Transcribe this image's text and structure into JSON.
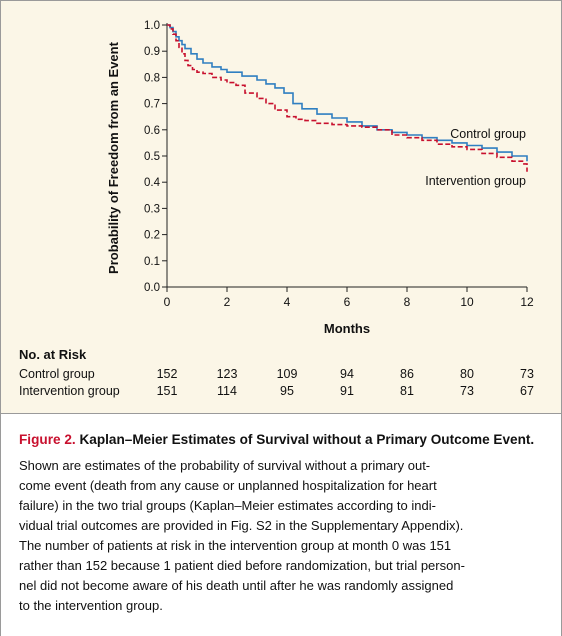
{
  "chart_data": {
    "type": "line",
    "xlabel": "Months",
    "ylabel": "Probability of Freedom from an Event",
    "xlim": [
      0,
      12
    ],
    "ylim": [
      0,
      1.0
    ],
    "x_ticks": [
      "0",
      "2",
      "4",
      "6",
      "8",
      "10",
      "12"
    ],
    "y_ticks": [
      "0.0",
      "0.1",
      "0.2",
      "0.3",
      "0.4",
      "0.5",
      "0.6",
      "0.7",
      "0.8",
      "0.9",
      "1.0"
    ],
    "series": [
      {
        "name": "Control group",
        "color": "#2f7fc1",
        "style": "solid",
        "points": [
          [
            0,
            1.0
          ],
          [
            0.1,
            0.99
          ],
          [
            0.2,
            0.975
          ],
          [
            0.3,
            0.955
          ],
          [
            0.4,
            0.94
          ],
          [
            0.5,
            0.925
          ],
          [
            0.6,
            0.91
          ],
          [
            0.8,
            0.89
          ],
          [
            1.0,
            0.87
          ],
          [
            1.2,
            0.855
          ],
          [
            1.5,
            0.84
          ],
          [
            1.8,
            0.83
          ],
          [
            2.0,
            0.82
          ],
          [
            2.5,
            0.805
          ],
          [
            3.0,
            0.79
          ],
          [
            3.3,
            0.775
          ],
          [
            3.6,
            0.76
          ],
          [
            3.9,
            0.74
          ],
          [
            4.2,
            0.7
          ],
          [
            4.5,
            0.68
          ],
          [
            5.0,
            0.66
          ],
          [
            5.5,
            0.645
          ],
          [
            6.0,
            0.63
          ],
          [
            6.5,
            0.615
          ],
          [
            7.0,
            0.6
          ],
          [
            7.5,
            0.59
          ],
          [
            8.0,
            0.58
          ],
          [
            8.5,
            0.57
          ],
          [
            9.0,
            0.56
          ],
          [
            9.5,
            0.55
          ],
          [
            10.0,
            0.54
          ],
          [
            10.5,
            0.53
          ],
          [
            11.0,
            0.515
          ],
          [
            11.5,
            0.5
          ],
          [
            12.0,
            0.48
          ]
        ]
      },
      {
        "name": "Intervention group",
        "color": "#c8102e",
        "style": "dashed",
        "points": [
          [
            0,
            1.0
          ],
          [
            0.1,
            0.985
          ],
          [
            0.2,
            0.965
          ],
          [
            0.3,
            0.94
          ],
          [
            0.4,
            0.915
          ],
          [
            0.5,
            0.89
          ],
          [
            0.6,
            0.865
          ],
          [
            0.7,
            0.845
          ],
          [
            0.85,
            0.83
          ],
          [
            1.0,
            0.82
          ],
          [
            1.2,
            0.815
          ],
          [
            1.5,
            0.8
          ],
          [
            1.8,
            0.79
          ],
          [
            2.0,
            0.78
          ],
          [
            2.3,
            0.77
          ],
          [
            2.6,
            0.74
          ],
          [
            3.0,
            0.72
          ],
          [
            3.3,
            0.7
          ],
          [
            3.6,
            0.675
          ],
          [
            4.0,
            0.65
          ],
          [
            4.3,
            0.64
          ],
          [
            4.6,
            0.635
          ],
          [
            5.0,
            0.625
          ],
          [
            5.5,
            0.62
          ],
          [
            6.0,
            0.615
          ],
          [
            6.5,
            0.61
          ],
          [
            7.0,
            0.6
          ],
          [
            7.5,
            0.58
          ],
          [
            8.0,
            0.57
          ],
          [
            8.5,
            0.56
          ],
          [
            9.0,
            0.545
          ],
          [
            9.5,
            0.535
          ],
          [
            10.0,
            0.525
          ],
          [
            10.5,
            0.51
          ],
          [
            11.0,
            0.495
          ],
          [
            11.5,
            0.48
          ],
          [
            11.85,
            0.47
          ],
          [
            12.0,
            0.44
          ]
        ]
      }
    ]
  },
  "risk_table": {
    "title": "No. at Risk",
    "rows": [
      {
        "label": "Control group",
        "values": [
          "152",
          "123",
          "109",
          "94",
          "86",
          "80",
          "73"
        ]
      },
      {
        "label": "Intervention group",
        "values": [
          "151",
          "114",
          "95",
          "91",
          "81",
          "73",
          "67"
        ]
      }
    ]
  },
  "caption": {
    "figure_number": "Figure 2.",
    "title": "Kaplan–Meier Estimates of Survival without a Primary Outcome Event.",
    "body_lines": [
      "Shown are estimates of the probability of survival without a primary out-",
      "come event (death from any cause or unplanned hospitalization for heart",
      "failure) in the two trial groups (Kaplan–Meier estimates according to indi-",
      "vidual trial outcomes are provided in Fig. S2 in the Supplementary Appendix).",
      "The number of patients at risk in the intervention group at month 0 was 151",
      "rather than 152 because 1 patient died before randomization, but trial person-",
      "nel did not become aware of his death until after he was randomly assigned",
      "to the intervention group."
    ]
  }
}
